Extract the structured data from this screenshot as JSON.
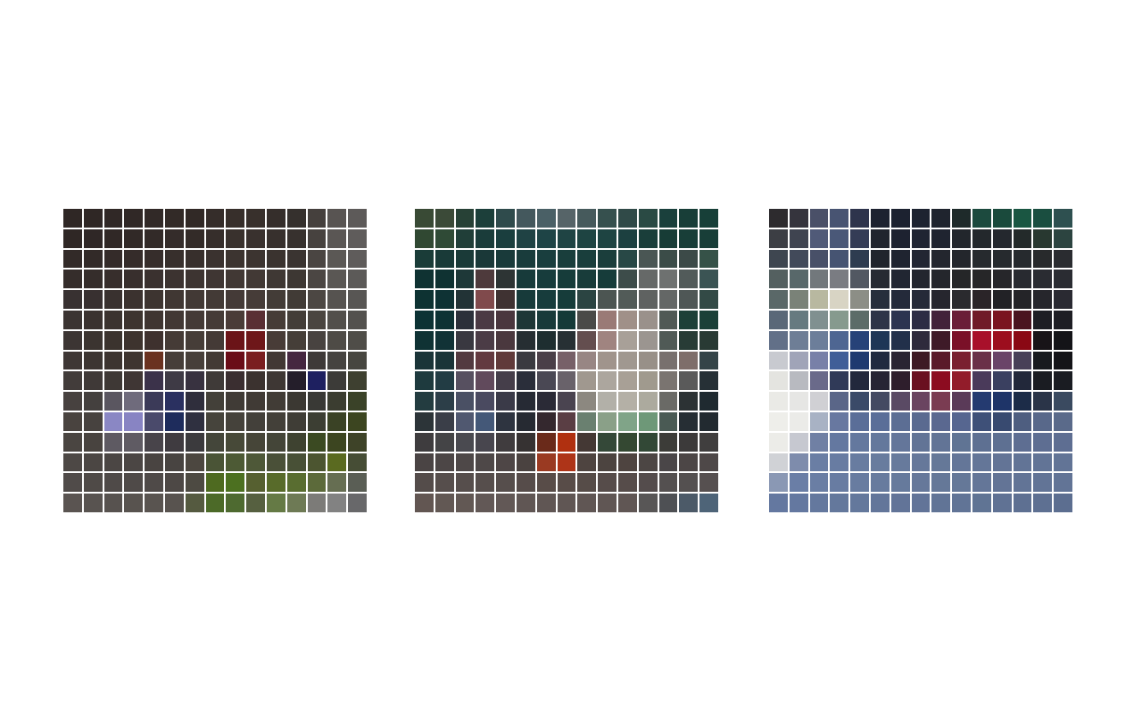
{
  "panels": [
    {
      "label": "pixel-mosaic-1",
      "rows": 15,
      "cols": 15,
      "cells": [
        [
          "#2f2725",
          "#2f2725",
          "#302826",
          "#302826",
          "#312927",
          "#322a27",
          "#312926",
          "#352d2a",
          "#372f2b",
          "#38302c",
          "#352e2b",
          "#35302d",
          "#45403d",
          "#585452",
          "#5d5a59"
        ],
        [
          "#2f2725",
          "#2f2726",
          "#302826",
          "#312927",
          "#322a28",
          "#342c2a",
          "#332b28",
          "#362e2b",
          "#39312d",
          "#39312e",
          "#37302d",
          "#37312e",
          "#47423f",
          "#5a5654",
          "#5f5c5b"
        ],
        [
          "#322a28",
          "#322a28",
          "#342b29",
          "#352c2a",
          "#362d2b",
          "#372f2c",
          "#372f2c",
          "#3a322f",
          "#3c3430",
          "#3c3430",
          "#3a332f",
          "#3a3431",
          "#4a4542",
          "#5b5855",
          "#5f5c5b"
        ],
        [
          "#352d2b",
          "#352d2b",
          "#372e2c",
          "#382f2d",
          "#3a312f",
          "#3c3330",
          "#3d3431",
          "#3f3633",
          "#413834",
          "#423935",
          "#3f3834",
          "#3d3733",
          "#4b4643",
          "#5a5754",
          "#5c5a58"
        ],
        [
          "#383131",
          "#383030",
          "#39312f",
          "#3b322f",
          "#3d3430",
          "#403733",
          "#423935",
          "#433a36",
          "#443a37",
          "#463c38",
          "#433c37",
          "#413b36",
          "#4c4743",
          "#565350",
          "#585654"
        ],
        [
          "#3b3432",
          "#3a322f",
          "#3b332f",
          "#3d342f",
          "#3f3531",
          "#423834",
          "#443a36",
          "#453b37",
          "#4a3c38",
          "#5a2f34",
          "#463c37",
          "#433d38",
          "#4a4540",
          "#524f4b",
          "#53514e"
        ],
        [
          "#3c3533",
          "#3b3430",
          "#3b332e",
          "#3d332e",
          "#3e312e",
          "#453b36",
          "#463d38",
          "#443a36",
          "#6b1418",
          "#6e1719",
          "#483c37",
          "#453e38",
          "#484340",
          "#4e4b46",
          "#4f4d48"
        ],
        [
          "#3e3735",
          "#3c3532",
          "#3c3430",
          "#3e3530",
          "#6a3220",
          "#463e39",
          "#473f3a",
          "#433a35",
          "#6a0d18",
          "#7a1e20",
          "#423834",
          "#452740",
          "#3e3a38",
          "#454340",
          "#474640"
        ],
        [
          "#423c3a",
          "#3f3937",
          "#3e3835",
          "#3f3634",
          "#3b324a",
          "#3e3a45",
          "#383240",
          "#3f3a38",
          "#3a2e30",
          "#3b322f",
          "#3e3734",
          "#241e2a",
          "#1e2060",
          "#3c3b38",
          "#3e4030"
        ],
        [
          "#47413f",
          "#44403e",
          "#5a5660",
          "#6f6b7c",
          "#3b3a58",
          "#2a3060",
          "#2f2e3c",
          "#434039",
          "#403b36",
          "#403a35",
          "#413c36",
          "#3b3832",
          "#393935",
          "#3b3d30",
          "#3a4228"
        ],
        [
          "#49433f",
          "#47423f",
          "#8a87c4",
          "#8884c3",
          "#4a4a6b",
          "#1e2c5c",
          "#2f3040",
          "#46443c",
          "#45423b",
          "#43403a",
          "#434039",
          "#3f3d36",
          "#3c3e33",
          "#3a4225",
          "#3c4520"
        ],
        [
          "#4a4541",
          "#48433f",
          "#5e5a62",
          "#5f5b63",
          "#48444a",
          "#3f3b40",
          "#3b3a3d",
          "#44463a",
          "#474938",
          "#464538",
          "#444538",
          "#3e4230",
          "#3b4a22",
          "#3c4520",
          "#3e4328"
        ],
        [
          "#4d4845",
          "#4b4643",
          "#4b4644",
          "#4b4644",
          "#494441",
          "#484441",
          "#4c4740",
          "#4a5436",
          "#4d5a35",
          "#4e5838",
          "#4a5038",
          "#485036",
          "#4c5530",
          "#5a6a20",
          "#464d35"
        ],
        [
          "#504b49",
          "#4f4a47",
          "#4f4a48",
          "#4f4a48",
          "#4f4a48",
          "#4d4845",
          "#4d4a42",
          "#4e6a20",
          "#4c7020",
          "#566030",
          "#586b2a",
          "#596d30",
          "#5c6a3a",
          "#666e52",
          "#5a5e55"
        ],
        [
          "#5a5451",
          "#585350",
          "#57524f",
          "#58534f",
          "#595450",
          "#58534f",
          "#555a40",
          "#4c6a28",
          "#4e6a30",
          "#566040",
          "#657a45",
          "#6e7a55",
          "#7c7b78",
          "#828282",
          "#68686a"
        ]
      ]
    },
    {
      "label": "pixel-mosaic-2",
      "rows": 15,
      "cols": 15,
      "cells": [
        [
          "#394a35",
          "#3b4a38",
          "#274136",
          "#1c3f3a",
          "#2f4b4c",
          "#44585d",
          "#4a6066",
          "#566468",
          "#465a5c",
          "#36504e",
          "#304a48",
          "#2a4a44",
          "#1a403c",
          "#183e38",
          "#173f38"
        ],
        [
          "#304832",
          "#2f4a36",
          "#203e38",
          "#1a3c3a",
          "#1a3e3e",
          "#1f4244",
          "#1e4446",
          "#1f4444",
          "#1e4442",
          "#1e4442",
          "#1c4040",
          "#1a3e3a",
          "#173c36",
          "#183e38",
          "#183e38"
        ],
        [
          "#1a3c38",
          "#193a38",
          "#1a3a38",
          "#1a3838",
          "#193a3a",
          "#193c3c",
          "#193e3e",
          "#193e3c",
          "#193e3c",
          "#1b3e3c",
          "#284846",
          "#4a5654",
          "#3b4c48",
          "#3c4a48",
          "#365248"
        ],
        [
          "#0f3232",
          "#0f3232",
          "#1e3838",
          "#4e3a3c",
          "#2d3434",
          "#173a3a",
          "#173c3c",
          "#163c3a",
          "#183c3a",
          "#163c3a",
          "#3d4c4a",
          "#666968",
          "#6e7170",
          "#525b5a",
          "#3b5454"
        ],
        [
          "#0d3232",
          "#0e3234",
          "#223336",
          "#804a4c",
          "#3f3232",
          "#173a3a",
          "#173c3c",
          "#163c3a",
          "#2b4442",
          "#4c5552",
          "#525b58",
          "#5f6261",
          "#646766",
          "#4f5756",
          "#334a46"
        ],
        [
          "#0c3234",
          "#0d3234",
          "#2b303a",
          "#4b3a44",
          "#4a363e",
          "#1e3636",
          "#183a3a",
          "#143a38",
          "#4a4a48",
          "#9a7a76",
          "#a09088",
          "#9a918b",
          "#505955",
          "#1d4038",
          "#1b4038"
        ],
        [
          "#0f3234",
          "#113236",
          "#393840",
          "#4b3c46",
          "#4a383e",
          "#262e32",
          "#1e2e30",
          "#273034",
          "#644e4f",
          "#a08480",
          "#a8a098",
          "#9b9590",
          "#505a56",
          "#283c36",
          "#293a34"
        ],
        [
          "#1a3438",
          "#1a3438",
          "#533a40",
          "#633a40",
          "#603a3a",
          "#3a3a40",
          "#4a3f48",
          "#776068",
          "#988684",
          "#a0948c",
          "#a09890",
          "#989088",
          "#78706e",
          "#7e6e6a",
          "#344448"
        ],
        [
          "#1e3a3e",
          "#223c44",
          "#575060",
          "#614a5c",
          "#453e4a",
          "#2a2e3a",
          "#4a4854",
          "#69626a",
          "#a0988f",
          "#aca69e",
          "#a8a096",
          "#a09a8e",
          "#7a7470",
          "#5a5a5a",
          "#263036"
        ],
        [
          "#233c40",
          "#2c3e48",
          "#4a5064",
          "#4a4a60",
          "#3a3a48",
          "#262a34",
          "#2a2a36",
          "#4a4450",
          "#8c8880",
          "#b2b0a8",
          "#b4b0a6",
          "#acaa9e",
          "#6a6a66",
          "#2c3234",
          "#1f2a30"
        ],
        [
          "#2c3438",
          "#3a3e48",
          "#505870",
          "#445878",
          "#2e3440",
          "#262a32",
          "#34282e",
          "#5a3e44",
          "#6a8070",
          "#8aa088",
          "#80a488",
          "#6e9878",
          "#4a5a54",
          "#262e34",
          "#222a30"
        ],
        [
          "#3e3c3e",
          "#444446",
          "#4a4a50",
          "#48464e",
          "#403c3e",
          "#363232",
          "#6a2a1a",
          "#b03010",
          "#443834",
          "#344838",
          "#344832",
          "#324836",
          "#3c3c38",
          "#3c3a3a",
          "#403e3e"
        ],
        [
          "#4a4444",
          "#4c4646",
          "#4e4848",
          "#4e4848",
          "#4e4646",
          "#4a4240",
          "#9a3a22",
          "#ae3418",
          "#4e4440",
          "#4c4440",
          "#4e4440",
          "#4c4644",
          "#4a4648",
          "#4c4646",
          "#4e4848"
        ],
        [
          "#544c4a",
          "#564e4c",
          "#564e4c",
          "#564e4c",
          "#564e4c",
          "#564c4a",
          "#584c48",
          "#584c48",
          "#564c48",
          "#564c4a",
          "#564c4a",
          "#544c4c",
          "#545050",
          "#545050",
          "#565050"
        ],
        [
          "#625652",
          "#625854",
          "#625854",
          "#625856",
          "#625856",
          "#605654",
          "#605654",
          "#605654",
          "#605654",
          "#605654",
          "#605654",
          "#585656",
          "#4e5054",
          "#4c5a68",
          "#4e6478"
        ]
      ]
    },
    {
      "label": "pixel-mosaic-3",
      "rows": 15,
      "cols": 15,
      "cells": [
        [
          "#2d2b2e",
          "#35343d",
          "#4a5068",
          "#485472",
          "#2e344c",
          "#1d2230",
          "#1c2230",
          "#1d2330",
          "#1f242e",
          "#1e2a2a",
          "#1c4a3e",
          "#1a4a3c",
          "#1a5642",
          "#1a4e40",
          "#2e5050"
        ],
        [
          "#3c3e44",
          "#3f4450",
          "#505a78",
          "#4a5878",
          "#343c56",
          "#20242e",
          "#1d2230",
          "#1f2432",
          "#1f2430",
          "#22262c",
          "#23282c",
          "#24282e",
          "#232a2a",
          "#283830",
          "#2c4440"
        ],
        [
          "#3e4650",
          "#424a5a",
          "#485068",
          "#465472",
          "#2e3c50",
          "#20242c",
          "#1f2430",
          "#222632",
          "#23262e",
          "#23262c",
          "#262a2e",
          "#262a2e",
          "#262a2e",
          "#282a2c",
          "#2a2c30"
        ],
        [
          "#546060",
          "#58686a",
          "#72787c",
          "#7a7c82",
          "#525862",
          "#262a32",
          "#212632",
          "#23262e",
          "#24262c",
          "#252628",
          "#262628",
          "#26262a",
          "#282a30",
          "#2a2c32",
          "#2a2c32"
        ],
        [
          "#5a6868",
          "#7a8278",
          "#b8b8a0",
          "#d8d4c4",
          "#8c8e86",
          "#262e3c",
          "#242a3a",
          "#252a38",
          "#26262e",
          "#2a2a2e",
          "#2a2428",
          "#222226",
          "#242428",
          "#26262c",
          "#2a2a32"
        ],
        [
          "#5a6878",
          "#667a80",
          "#809090",
          "#869a8e",
          "#5c6c68",
          "#2e3448",
          "#2c3450",
          "#2c2c44",
          "#42223a",
          "#6a1e38",
          "#701a28",
          "#7a1420",
          "#4a1420",
          "#1e1e24",
          "#1e1e24"
        ],
        [
          "#627088",
          "#6e7e96",
          "#6c7e9a",
          "#4e6692",
          "#264278",
          "#1e3656",
          "#22304a",
          "#2e2a3c",
          "#3e1a28",
          "#7a1028",
          "#a8102a",
          "#9c0e1e",
          "#8a0814",
          "#181418",
          "#141418"
        ],
        [
          "#c8cad0",
          "#a0a4b8",
          "#7880a8",
          "#405e98",
          "#1e3a70",
          "#202a40",
          "#2a2432",
          "#3e1a24",
          "#5a1a2a",
          "#7a2030",
          "#6a3048",
          "#6a4468",
          "#484058",
          "#181a1e",
          "#141418"
        ],
        [
          "#e4e4e0",
          "#b8bac0",
          "#6a6a8a",
          "#303a58",
          "#22283c",
          "#262434",
          "#2e1e2c",
          "#6a1020",
          "#8c0c20",
          "#921c2a",
          "#4a3a5a",
          "#3a4060",
          "#22283a",
          "#1a1c22",
          "#1a1c22"
        ],
        [
          "#eaeae6",
          "#e6e6e4",
          "#d0d0d4",
          "#5a6688",
          "#3a4a68",
          "#444a62",
          "#5a4a64",
          "#6a4460",
          "#7a3c52",
          "#5a3a58",
          "#243a70",
          "#1e3468",
          "#1c2c48",
          "#2a3448",
          "#3a4a60"
        ],
        [
          "#eeeeea",
          "#ebebe8",
          "#a8b2c4",
          "#6878a0",
          "#5a6e98",
          "#5a6e98",
          "#5c6e94",
          "#5a6a90",
          "#5a6890",
          "#566690",
          "#3e5078",
          "#384a70",
          "#4e5e80",
          "#58688a",
          "#5a6a8a"
        ],
        [
          "#ecece8",
          "#c6c8d0",
          "#7080a4",
          "#6478a0",
          "#64789e",
          "#64789c",
          "#64769a",
          "#627496",
          "#627496",
          "#607494",
          "#5e7092",
          "#5e7092",
          "#5e6e92",
          "#5e6e92",
          "#5e6e92"
        ],
        [
          "#d0d2d6",
          "#7e8cac",
          "#6a7ea4",
          "#687ca2",
          "#687ca0",
          "#687c9e",
          "#677a9c",
          "#66789a",
          "#657898",
          "#647698",
          "#647698",
          "#637496",
          "#627496",
          "#627496",
          "#627496"
        ],
        [
          "#8a98b4",
          "#6a7ea6",
          "#6a7ea4",
          "#687ca2",
          "#687ca0",
          "#677b9e",
          "#667a9c",
          "#66789a",
          "#657898",
          "#657898",
          "#647698",
          "#637496",
          "#627496",
          "#627496",
          "#627496"
        ],
        [
          "#6478a0",
          "#6478a0",
          "#64789e",
          "#64789c",
          "#64789c",
          "#63769a",
          "#627498",
          "#627498",
          "#617496",
          "#617496",
          "#607494",
          "#607294",
          "#5e7092",
          "#5e7092",
          "#5c6e90"
        ]
      ]
    }
  ]
}
